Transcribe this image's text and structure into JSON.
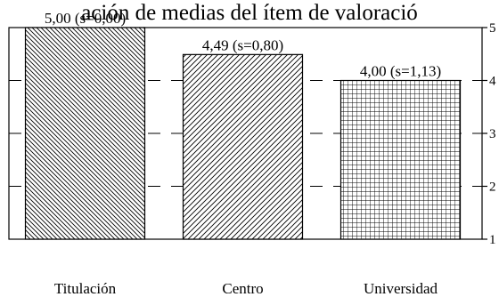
{
  "chart_data": {
    "type": "bar",
    "title": "ación de medias del ítem de valoració",
    "categories": [
      "Titulación",
      "Centro",
      "Universidad"
    ],
    "values": [
      5.0,
      4.49,
      4.0
    ],
    "data_labels": [
      "5,00 (s=0,00)",
      "4,49 (s=0,80)",
      "4,00 (s=1,13)"
    ],
    "ylim": [
      1,
      5
    ],
    "yticks": [
      "1",
      "2",
      "3",
      "4",
      "5"
    ],
    "y_axis_side": "right",
    "grid": "dashed horizontal",
    "fill_patterns": [
      "diagonal-back",
      "diagonal-forward",
      "crosshatch"
    ],
    "colors": {
      "stroke": "#000000",
      "background": "#ffffff"
    }
  }
}
